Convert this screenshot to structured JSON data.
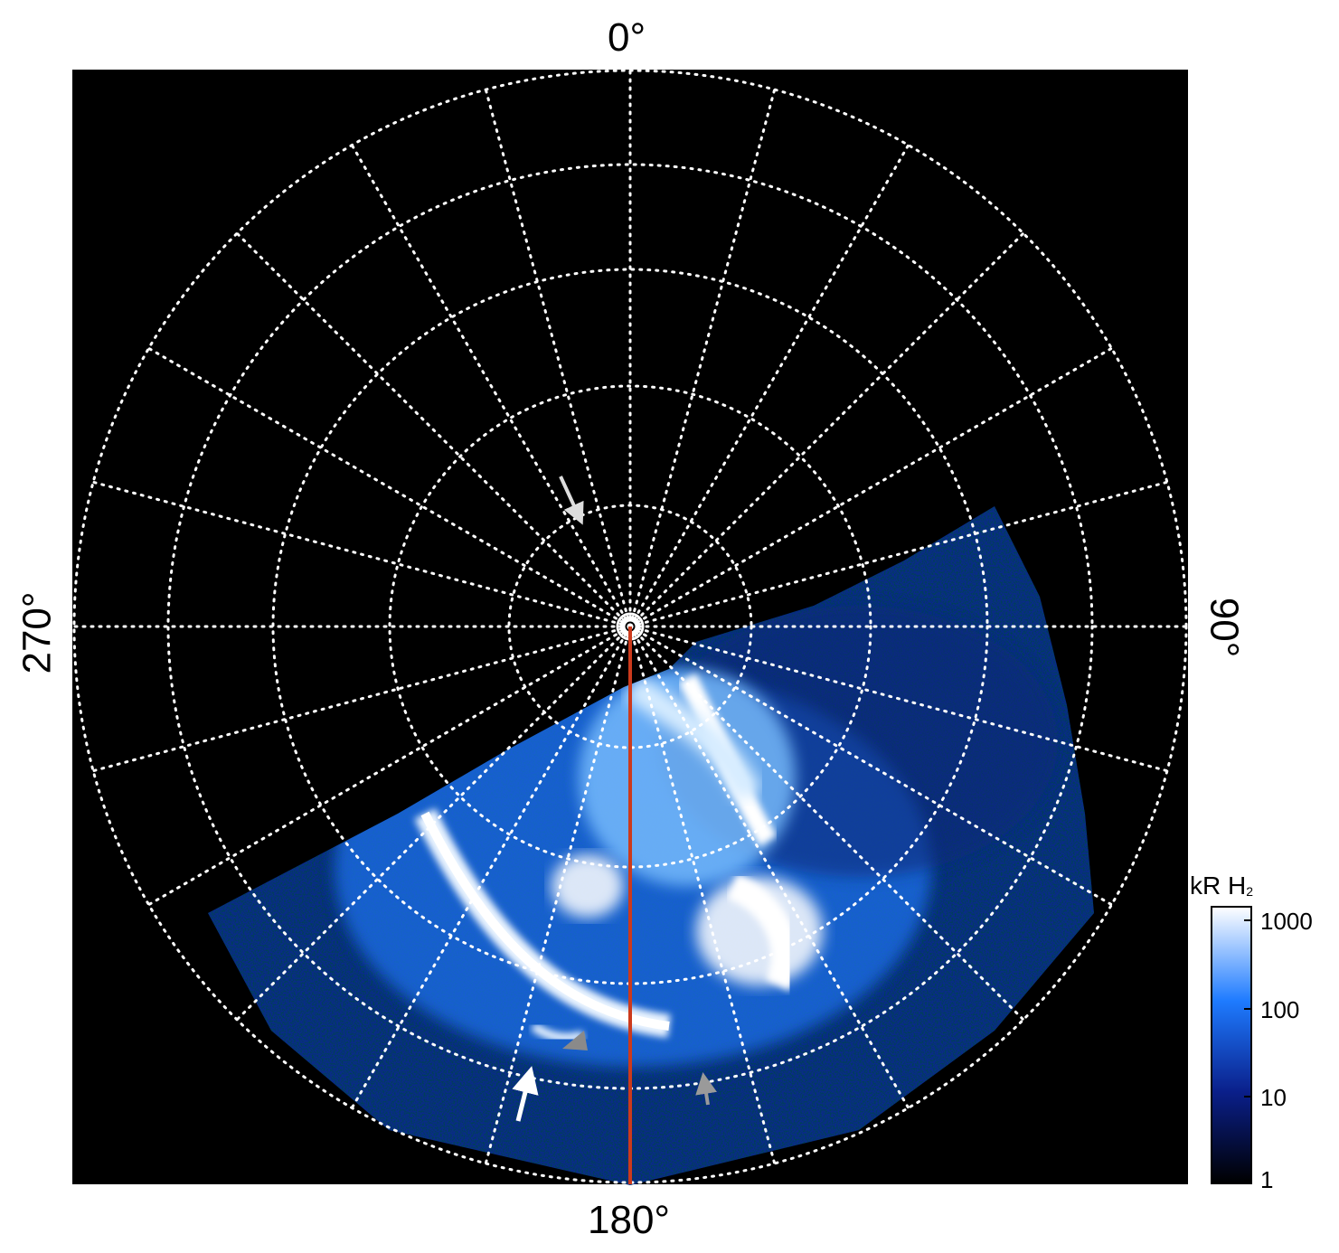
{
  "figure": {
    "labels": {
      "top": "0°",
      "bottom": "180°",
      "left": "270°",
      "right": "90°"
    },
    "colorbar": {
      "title": "kR H",
      "title_subscript": "2",
      "ticks": [
        "1000",
        "100",
        "10",
        "1"
      ],
      "scale": "log",
      "colors": [
        "#000000",
        "#0a1f8a",
        "#1e7bff",
        "#ffffff"
      ]
    },
    "annotations": [
      {
        "name": "arrow-light-gray-upper",
        "color": "#dddddd"
      },
      {
        "name": "arrow-gray-left",
        "color": "#8a8a8a"
      },
      {
        "name": "arrow-white-lower",
        "color": "#ffffff"
      },
      {
        "name": "arrow-gray-right",
        "color": "#9a9a9a"
      }
    ],
    "meridian_line_color": "#cc3a1c",
    "grid_color": "#ffffff"
  }
}
